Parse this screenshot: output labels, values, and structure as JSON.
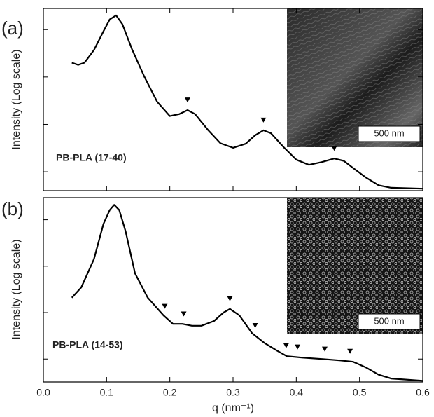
{
  "chart_data": [
    {
      "type": "line",
      "panel_label": "(a)",
      "sample_label": "PB-PLA (17-40)",
      "y_label": "Intensity (Log scale)",
      "inset_label": "500 nm",
      "yscale": "log",
      "color": "#000000",
      "xlim": [
        0,
        0.6
      ],
      "ylim": [
        4,
        28000
      ],
      "yticks": [
        10,
        100,
        1000,
        10000
      ],
      "x": [
        0.045,
        0.055,
        0.065,
        0.08,
        0.095,
        0.105,
        0.115,
        0.125,
        0.14,
        0.16,
        0.18,
        0.2,
        0.215,
        0.228,
        0.24,
        0.26,
        0.28,
        0.3,
        0.32,
        0.335,
        0.348,
        0.36,
        0.38,
        0.4,
        0.42,
        0.44,
        0.46,
        0.475,
        0.49,
        0.51,
        0.53,
        0.55,
        0.6
      ],
      "values": [
        2000,
        1800,
        2000,
        3700,
        9200,
        16400,
        20000,
        13000,
        3900,
        1000,
        300,
        150,
        165,
        200,
        165,
        77,
        40,
        32,
        39,
        59,
        75,
        65,
        33,
        18,
        14,
        16,
        19,
        17,
        12,
        7.6,
        5.2,
        4.6,
        4.4
      ],
      "peak_markers": [
        0.228,
        0.348,
        0.46
      ]
    },
    {
      "type": "line",
      "panel_label": "(b)",
      "sample_label": "PB-PLA (14-53)",
      "y_label": "Intensity (Log scale)",
      "inset_label": "500 nm",
      "yscale": "log",
      "color": "#000000",
      "x_label": "q (nm⁻¹)",
      "xlim": [
        0,
        0.6
      ],
      "xticks": [
        {
          "value": 0,
          "label": "0.0"
        },
        0.1,
        0.2,
        0.3,
        0.4,
        0.5,
        0.6
      ],
      "ylim": [
        3.2,
        30000
      ],
      "yticks": [
        10,
        100,
        1000,
        10000
      ],
      "x": [
        0.045,
        0.06,
        0.08,
        0.095,
        0.105,
        0.112,
        0.12,
        0.13,
        0.145,
        0.165,
        0.19,
        0.205,
        0.22,
        0.235,
        0.25,
        0.27,
        0.285,
        0.295,
        0.31,
        0.33,
        0.35,
        0.37,
        0.385,
        0.41,
        0.44,
        0.47,
        0.49,
        0.51,
        0.53,
        0.55,
        0.6
      ],
      "values": [
        210,
        350,
        1420,
        8100,
        16200,
        21000,
        16200,
        5700,
        700,
        210,
        87,
        57,
        57,
        52,
        52,
        66,
        100,
        120,
        87,
        36,
        22,
        15,
        11.5,
        10.7,
        10,
        9.3,
        8.7,
        6.6,
        4.6,
        3.8,
        3.4
      ],
      "peak_markers": [
        0.192,
        0.222,
        0.295,
        0.335,
        0.384,
        0.402,
        0.445,
        0.485
      ]
    }
  ]
}
